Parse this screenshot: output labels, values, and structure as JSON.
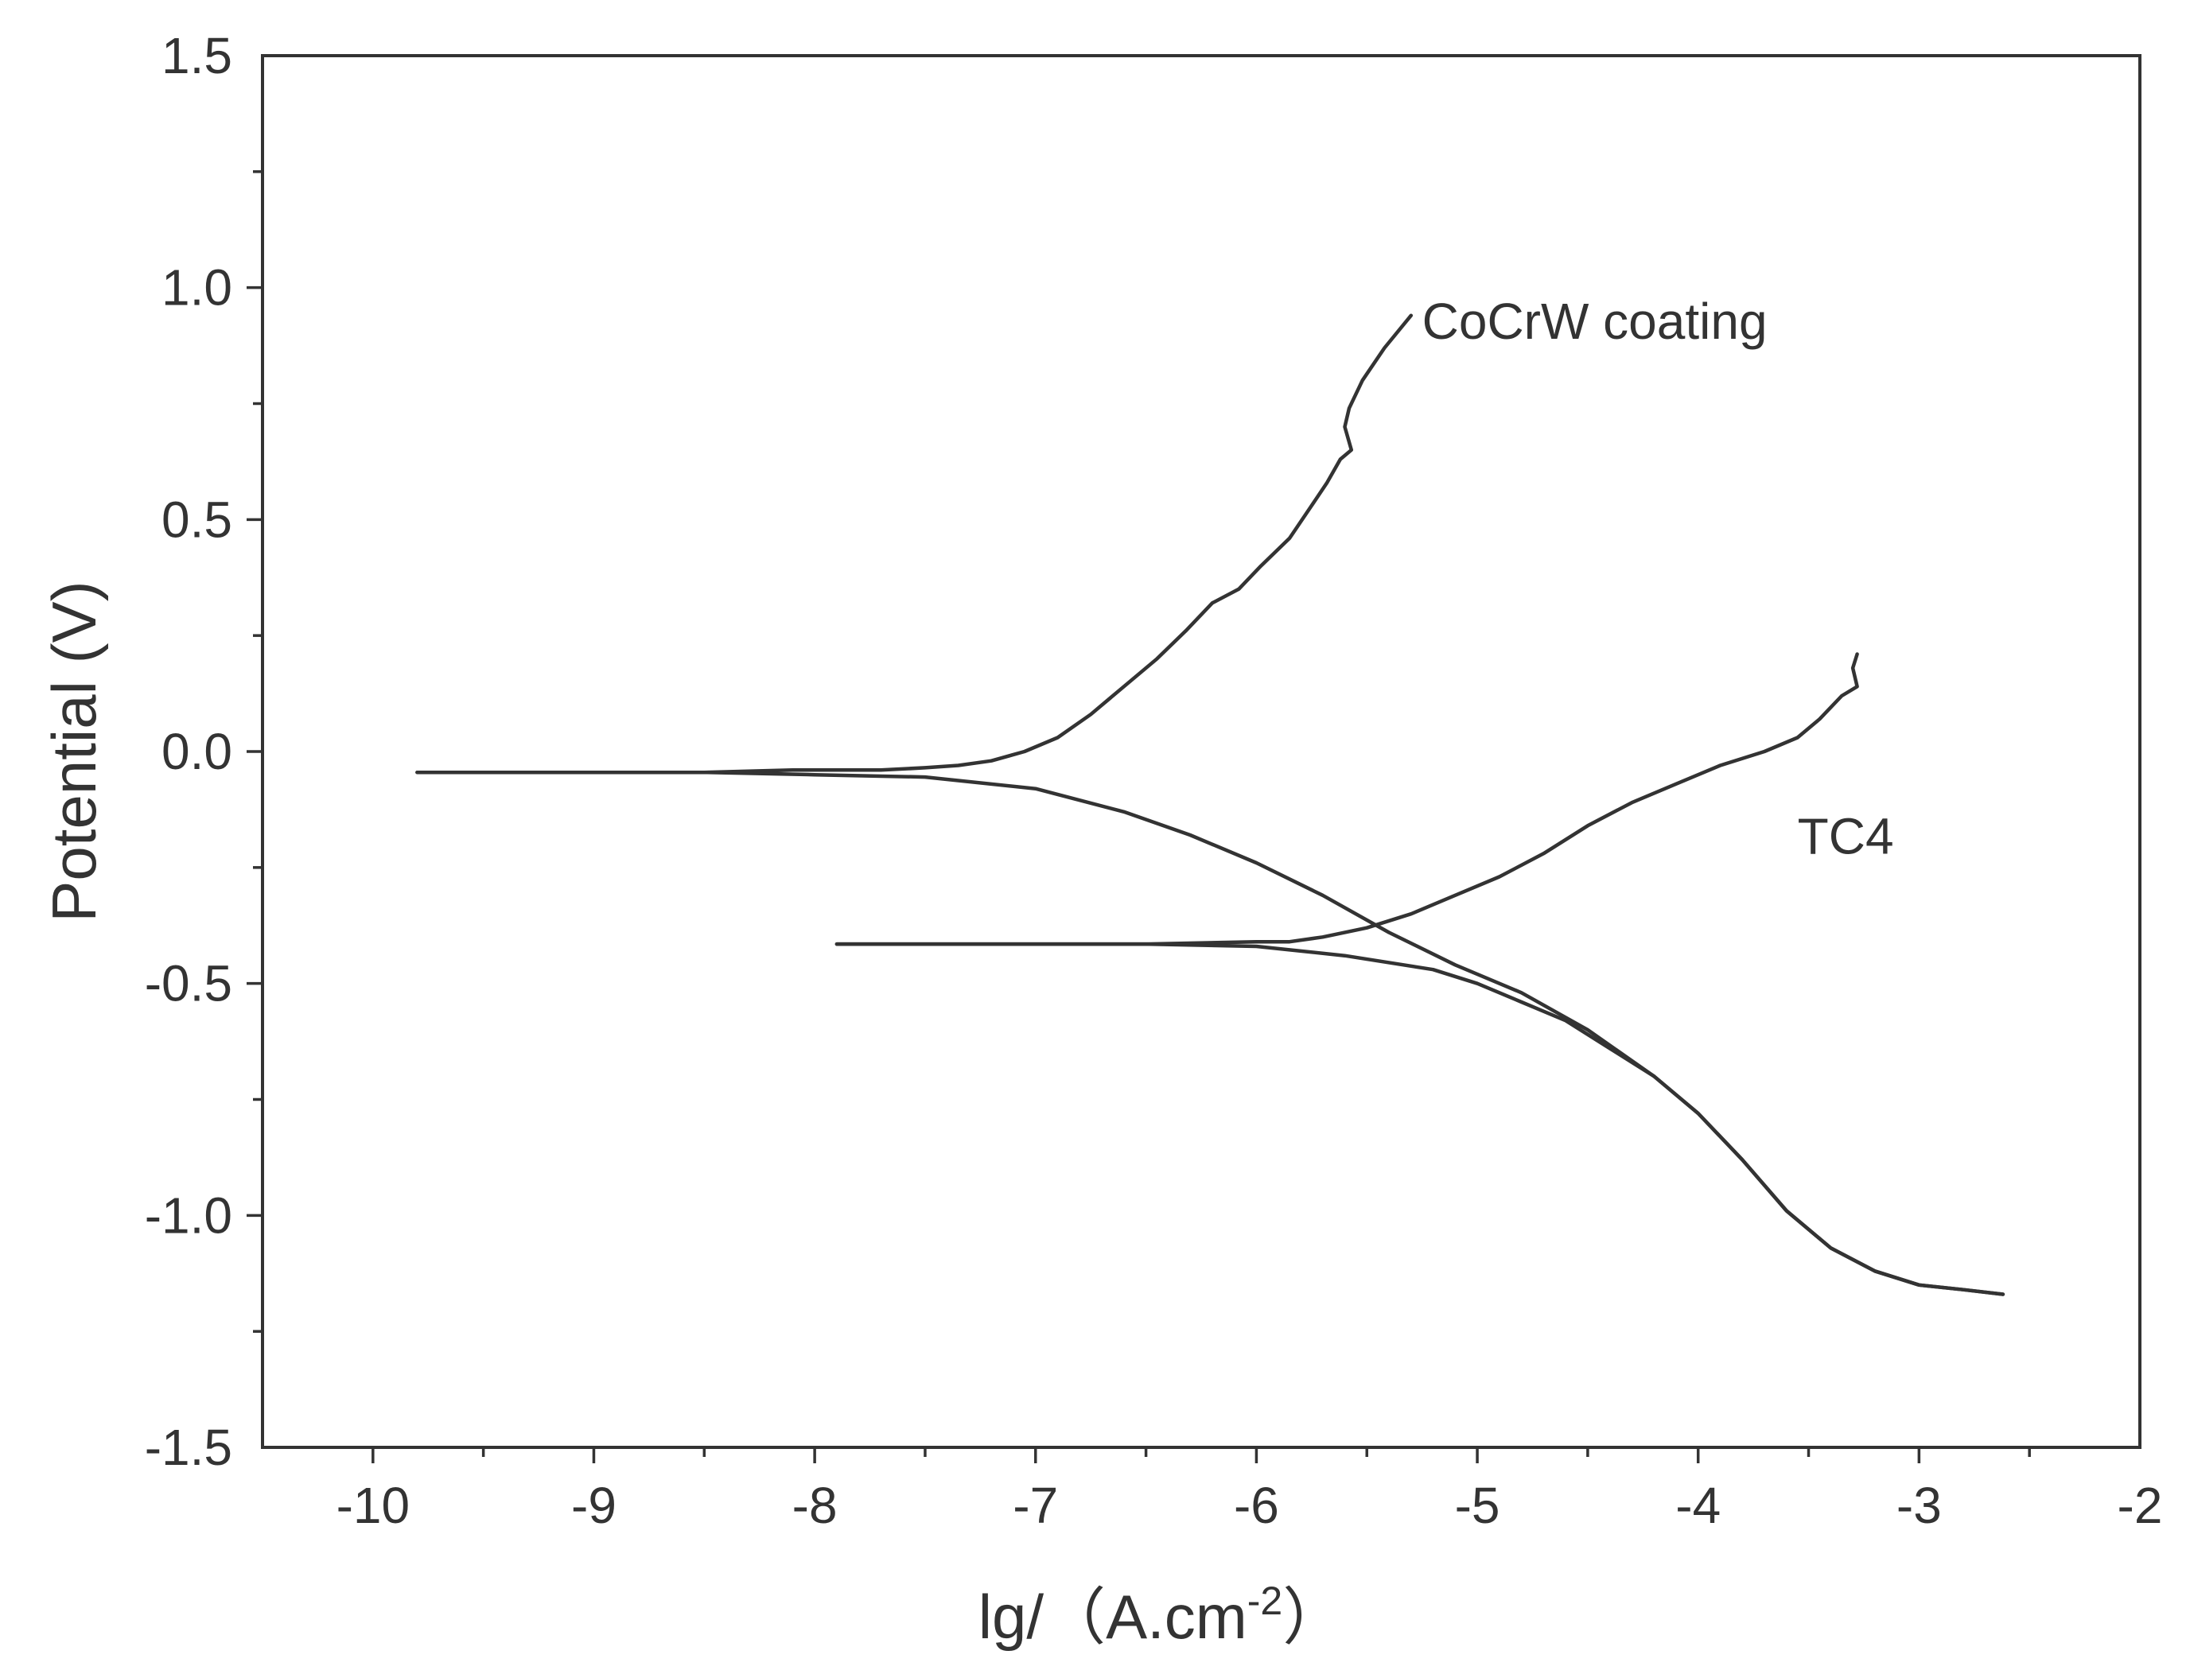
{
  "chart_data": {
    "type": "line",
    "title": "",
    "xlabel": "lg/（A.cm",
    "xlabel_sup": "-2",
    "xlabel_close": "）",
    "ylabel": "Potential (V)",
    "xlim": [
      -10.5,
      -2
    ],
    "ylim": [
      -1.5,
      1.5
    ],
    "x_ticks": [
      -10,
      -9,
      -8,
      -7,
      -6,
      -5,
      -4,
      -3,
      -2
    ],
    "x_tick_labels": [
      "-10",
      "-9",
      "-8",
      "-7",
      "-6",
      "-5",
      "-4",
      "-3",
      "-2"
    ],
    "y_ticks": [
      -1.5,
      -1.0,
      -0.5,
      0.0,
      0.5,
      1.0,
      1.5
    ],
    "y_tick_labels": [
      "-1.5",
      "-1.0",
      "-0.5",
      "0.0",
      "0.5",
      "1.0",
      "1.5"
    ],
    "grid": false,
    "series": [
      {
        "name": "CoCrW coating",
        "label": "CoCrW coating",
        "label_anchor": [
          -5.25,
          0.89
        ],
        "branches": [
          {
            "x": [
              -5.3,
              -5.42,
              -5.52,
              -5.58,
              -5.6,
              -5.57,
              -5.62,
              -5.68,
              -5.75,
              -5.85,
              -5.98,
              -6.08,
              -6.2,
              -6.32,
              -6.45,
              -6.6,
              -6.75,
              -6.9,
              -7.05,
              -7.2,
              -7.35,
              -7.5,
              -7.7,
              -7.9,
              -8.1,
              -8.5,
              -9.0,
              -9.5,
              -9.8
            ],
            "y": [
              0.94,
              0.87,
              0.8,
              0.74,
              0.7,
              0.65,
              0.63,
              0.58,
              0.53,
              0.46,
              0.4,
              0.35,
              0.32,
              0.26,
              0.2,
              0.14,
              0.08,
              0.03,
              0.0,
              -0.02,
              -0.03,
              -0.035,
              -0.04,
              -0.04,
              -0.04,
              -0.045,
              -0.045,
              -0.045,
              -0.045
            ]
          },
          {
            "x": [
              -9.8,
              -9.0,
              -8.5,
              -8.0,
              -7.5,
              -7.0,
              -6.6,
              -6.3,
              -6.0,
              -5.7,
              -5.4,
              -5.1,
              -4.8,
              -4.5,
              -4.2,
              -4.0,
              -3.8,
              -3.6,
              -3.4,
              -3.2,
              -3.0,
              -2.8,
              -2.62
            ],
            "y": [
              -0.045,
              -0.045,
              -0.045,
              -0.05,
              -0.055,
              -0.08,
              -0.13,
              -0.18,
              -0.24,
              -0.31,
              -0.39,
              -0.46,
              -0.52,
              -0.6,
              -0.7,
              -0.78,
              -0.88,
              -0.99,
              -1.07,
              -1.12,
              -1.15,
              -1.16,
              -1.17
            ]
          }
        ]
      },
      {
        "name": "TC4",
        "label": "TC4",
        "label_anchor": [
          -3.55,
          -0.22
        ],
        "branches": [
          {
            "x": [
              -3.28,
              -3.3,
              -3.28,
              -3.35,
              -3.45,
              -3.55,
              -3.7,
              -3.9,
              -4.1,
              -4.3,
              -4.5,
              -4.7,
              -4.9,
              -5.1,
              -5.3,
              -5.5,
              -5.7,
              -5.85,
              -6.0,
              -6.5,
              -7.0,
              -7.5,
              -7.9
            ],
            "y": [
              0.21,
              0.18,
              0.14,
              0.12,
              0.07,
              0.03,
              0.0,
              -0.03,
              -0.07,
              -0.11,
              -0.16,
              -0.22,
              -0.27,
              -0.31,
              -0.35,
              -0.38,
              -0.4,
              -0.41,
              -0.41,
              -0.415,
              -0.415,
              -0.415,
              -0.415
            ]
          },
          {
            "x": [
              -7.9,
              -7.0,
              -6.5,
              -6.0,
              -5.6,
              -5.2,
              -5.0,
              -4.8,
              -4.6,
              -4.4,
              -4.2,
              -4.0,
              -3.8,
              -3.6,
              -3.4,
              -3.2,
              -3.0,
              -2.8,
              -2.62
            ],
            "y": [
              -0.415,
              -0.415,
              -0.415,
              -0.42,
              -0.44,
              -0.47,
              -0.5,
              -0.54,
              -0.58,
              -0.64,
              -0.7,
              -0.78,
              -0.88,
              -0.99,
              -1.07,
              -1.12,
              -1.15,
              -1.16,
              -1.17
            ]
          }
        ]
      }
    ]
  }
}
